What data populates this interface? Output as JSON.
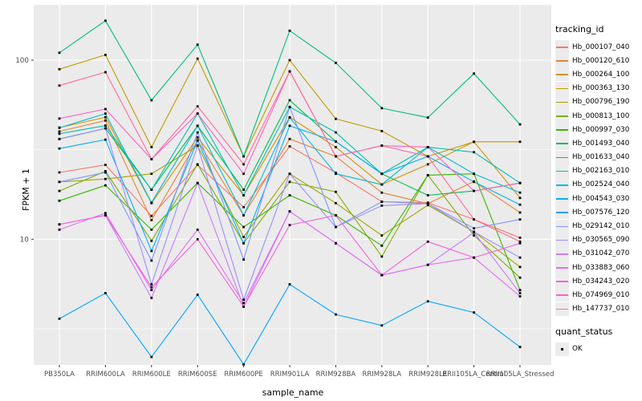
{
  "figure": {
    "xlabel": "sample_name",
    "ylabel": "FPKM + 1",
    "tracking_legend_title": "tracking_id",
    "quant_legend_title": "quant_status",
    "quant_ok_label": "OK",
    "panel_bg": "#EBEBEB",
    "grid_color": "#FFFFFF",
    "tick_label_color": "#4D4D4D",
    "point_color": "#000000"
  },
  "chart_data": {
    "type": "line",
    "title": "",
    "xlabel": "sample_name",
    "ylabel": "FPKM + 1",
    "x_type": "categorical",
    "y_scale": "log10",
    "y_tick_labels": [
      "100",
      "10"
    ],
    "y_ticks": [
      100,
      10
    ],
    "y_minor_breaks": [
      3.1623,
      31.623
    ],
    "ylim": [
      1.99,
      203
    ],
    "grid": "white major and minor on grey panel",
    "legend_position": "right",
    "marker": "small black square (quant_status = OK)",
    "categories": [
      "PB350LA",
      "RRIM600LA",
      "RRIM600LE",
      "RRIM600SE",
      "RRIM600PE",
      "RRIM901LA",
      "RRIM928BA",
      "RRIM928LA",
      "RRIM928LE",
      "RRII105LA_Control",
      "RRII105LA_Stressed"
    ],
    "series": [
      {
        "name": "Hb_000107_040",
        "color": "#F8766D",
        "values": [
          23.6,
          26.0,
          13.5,
          26.0,
          15.1,
          33.0,
          23.5,
          16.2,
          16.0,
          12.9,
          10.2
        ]
      },
      {
        "name": "Hb_000120_610",
        "color": "#EA8331",
        "values": [
          40.0,
          46.0,
          12.8,
          35.6,
          13.6,
          36.3,
          29.0,
          18.2,
          15.8,
          21.0,
          14.1
        ]
      },
      {
        "name": "Hb_000264_100",
        "color": "#D89000",
        "values": [
          42.0,
          48.0,
          15.9,
          37.0,
          17.6,
          48.0,
          32.7,
          20.2,
          26.2,
          35.0,
          17.0
        ]
      },
      {
        "name": "Hb_000363_130",
        "color": "#C09B00",
        "values": [
          89.0,
          107.0,
          32.7,
          102.0,
          29.0,
          100.0,
          47.0,
          40.2,
          29.0,
          35.0,
          35.0
        ]
      },
      {
        "name": "Hb_000796_190",
        "color": "#A3A500",
        "values": [
          20.9,
          21.7,
          23.2,
          33.3,
          10.3,
          23.2,
          15.9,
          10.5,
          15.5,
          11.0,
          7.0
        ]
      },
      {
        "name": "Hb_000813_100",
        "color": "#7CAE00",
        "values": [
          18.6,
          24.0,
          9.8,
          26.2,
          9.5,
          20.9,
          18.4,
          8.0,
          22.8,
          10.5,
          6.1
        ]
      },
      {
        "name": "Hb_000997_030",
        "color": "#39B600",
        "values": [
          16.4,
          20.0,
          11.3,
          20.6,
          11.7,
          17.6,
          13.6,
          9.2,
          22.8,
          23.2,
          5.2
        ]
      },
      {
        "name": "Hb_001493_040",
        "color": "#00BB4E",
        "values": [
          36.3,
          41.6,
          18.9,
          43.0,
          18.9,
          59.7,
          35.1,
          23.2,
          17.6,
          18.6,
          20.6
        ]
      },
      {
        "name": "Hb_001633_040",
        "color": "#00BF7D",
        "values": [
          110.0,
          166.0,
          59.7,
          122.0,
          29.0,
          146.0,
          96.6,
          53.9,
          47.8,
          84.2,
          43.8
        ]
      },
      {
        "name": "Hb_002163_010",
        "color": "#00C0B2",
        "values": [
          38.8,
          43.1,
          18.9,
          50.3,
          17.6,
          54.8,
          39.5,
          23.2,
          32.7,
          30.6,
          20.6
        ]
      },
      {
        "name": "Hb_002524_040",
        "color": "#00BCD8",
        "values": [
          41.9,
          50.3,
          16.0,
          43.0,
          13.6,
          47.8,
          23.2,
          20.2,
          32.7,
          23.2,
          18.2
        ]
      },
      {
        "name": "Hb_004543_030",
        "color": "#00B0F6",
        "values": [
          32.1,
          36.0,
          8.6,
          35.6,
          9.5,
          43.0,
          35.1,
          23.2,
          29.0,
          20.9,
          15.6
        ]
      },
      {
        "name": "Hb_007576_120",
        "color": "#00A5FF",
        "values": [
          3.6,
          5.0,
          2.2,
          4.9,
          2.0,
          5.6,
          3.8,
          3.3,
          4.5,
          3.9,
          2.5
        ]
      },
      {
        "name": "Hb_029142_010",
        "color": "#7C96FF",
        "values": [
          20.9,
          23.6,
          7.6,
          39.5,
          7.7,
          54.8,
          11.7,
          16.2,
          15.8,
          11.5,
          12.9
        ]
      },
      {
        "name": "Hb_030565_090",
        "color": "#9C8DFF",
        "values": [
          36.3,
          41.6,
          5.6,
          33.3,
          4.6,
          23.2,
          11.7,
          15.4,
          15.8,
          11.0,
          7.9
        ]
      },
      {
        "name": "Hb_031042_070",
        "color": "#C77CFF",
        "values": [
          12.1,
          13.6,
          4.7,
          20.6,
          4.2,
          14.3,
          9.5,
          6.3,
          7.2,
          10.9,
          5.0
        ]
      },
      {
        "name": "Hb_033883_060",
        "color": "#E36EF6",
        "values": [
          11.3,
          14.0,
          5.2,
          11.3,
          4.4,
          14.3,
          9.5,
          6.3,
          7.2,
          7.9,
          4.8
        ]
      },
      {
        "name": "Hb_034243_020",
        "color": "#F563DC",
        "values": [
          12.1,
          13.6,
          5.4,
          10.0,
          4.2,
          12.0,
          13.6,
          6.3,
          9.7,
          7.9,
          9.5
        ]
      },
      {
        "name": "Hb_074969_010",
        "color": "#FF61C3",
        "values": [
          47.2,
          53.3,
          28.0,
          50.3,
          23.2,
          86.6,
          29.0,
          33.3,
          32.7,
          18.6,
          20.6
        ]
      },
      {
        "name": "Hb_147737_010",
        "color": "#FF6A9A",
        "values": [
          72.1,
          85.7,
          28.0,
          55.2,
          26.2,
          86.6,
          29.0,
          33.3,
          29.0,
          12.9,
          9.7
        ]
      }
    ],
    "quant_status_legend": {
      "title": "quant_status",
      "items": [
        "OK"
      ]
    }
  }
}
